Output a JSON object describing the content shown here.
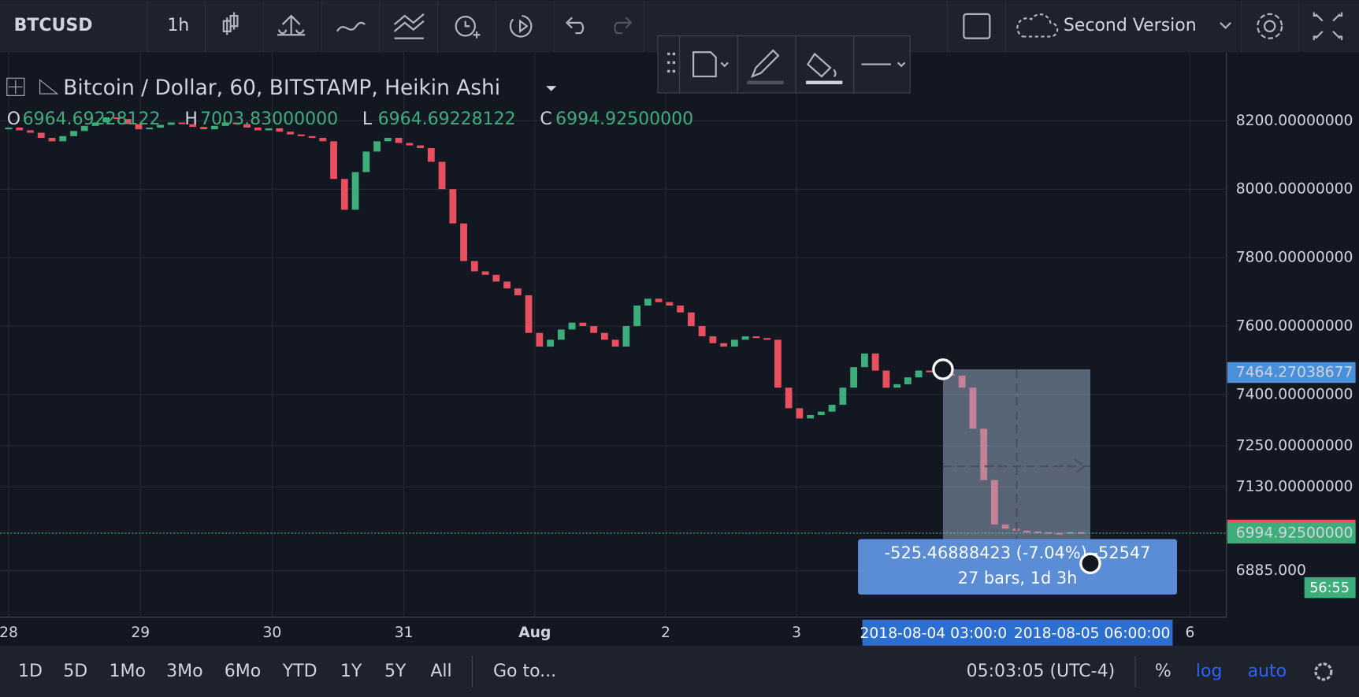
{
  "toolbar": {
    "symbol": "BTCUSD",
    "interval": "1h",
    "layout": "Second Version"
  },
  "legend": {
    "title": "Bitcoin / Dollar, 60, BITSTAMP, Heikin Ashi",
    "ohlc": [
      {
        "key": "O",
        "value": "6964.69228122"
      },
      {
        "key": "H",
        "value": "7003.83000000"
      },
      {
        "key": "L",
        "value": "6964.69228122"
      },
      {
        "key": "C",
        "value": "6994.92500000"
      }
    ]
  },
  "chart_data": {
    "type": "candlestick",
    "closes": [
      8180,
      8172,
      8165,
      8150,
      8140,
      8155,
      8170,
      8185,
      8195,
      8210,
      8205,
      8190,
      8175,
      8180,
      8188,
      8195,
      8190,
      8182,
      8175,
      8185,
      8195,
      8190,
      8180,
      8172,
      8178,
      8168,
      8160,
      8155,
      8150,
      8140,
      8030,
      7940,
      8050,
      8110,
      8140,
      8150,
      8135,
      8128,
      8120,
      8080,
      8000,
      7900,
      7790,
      7760,
      7750,
      7730,
      7710,
      7690,
      7580,
      7540,
      7560,
      7590,
      7610,
      7600,
      7580,
      7560,
      7540,
      7600,
      7660,
      7680,
      7670,
      7660,
      7640,
      7600,
      7570,
      7550,
      7540,
      7560,
      7570,
      7565,
      7560,
      7420,
      7360,
      7330,
      7340,
      7350,
      7370,
      7420,
      7480,
      7520,
      7470,
      7420,
      7430,
      7450,
      7470,
      7465,
      7460,
      7455,
      7420,
      7300,
      7150,
      7020,
      7008,
      7002,
      7000,
      6998,
      6996,
      6995,
      6998,
      6995
    ],
    "up_color": "#3dae7a",
    "down_color": "#e9505f",
    "ylim": [
      6780,
      8375
    ],
    "yticks": [
      {
        "value": 8200,
        "label": "8200.00000000"
      },
      {
        "value": 8000,
        "label": "8000.00000000"
      },
      {
        "value": 7800,
        "label": "7800.00000000"
      },
      {
        "value": 7600,
        "label": "7600.00000000"
      },
      {
        "value": 7400,
        "label": "7400.00000000"
      },
      {
        "value": 7250,
        "label": "7250.00000000"
      },
      {
        "value": 7130,
        "label": "7130.00000000"
      },
      {
        "value": 6885,
        "label": "6885.000"
      }
    ],
    "markers": [
      {
        "value": 7464.27038677,
        "label": "7464.27038677",
        "color": "#4a90d9"
      },
      {
        "value": 7003.83,
        "label": "7003.83000000",
        "color": "#e9505f"
      },
      {
        "value": 6994.925,
        "label": "6994.92500000",
        "color": "#3dae7a"
      }
    ],
    "countdown": "56:55",
    "x_labels": [
      "28",
      "29",
      "30",
      "31",
      "Aug",
      "2",
      "3",
      "6"
    ],
    "range_labels": [
      "2018-08-04 03:00:0",
      "2018-08-05 06:00:00"
    ],
    "grid": true
  },
  "measure": {
    "line1": "-525.46888423 (-7.04%) -52547",
    "line2": "27 bars, 1d 3h"
  },
  "bottom_bar": {
    "ranges": [
      "1D",
      "5D",
      "1Mo",
      "3Mo",
      "6Mo",
      "YTD",
      "1Y",
      "5Y",
      "All"
    ],
    "goto": "Go to...",
    "clock": "05:03:05 (UTC-4)",
    "options": [
      "%",
      "log",
      "auto"
    ]
  }
}
